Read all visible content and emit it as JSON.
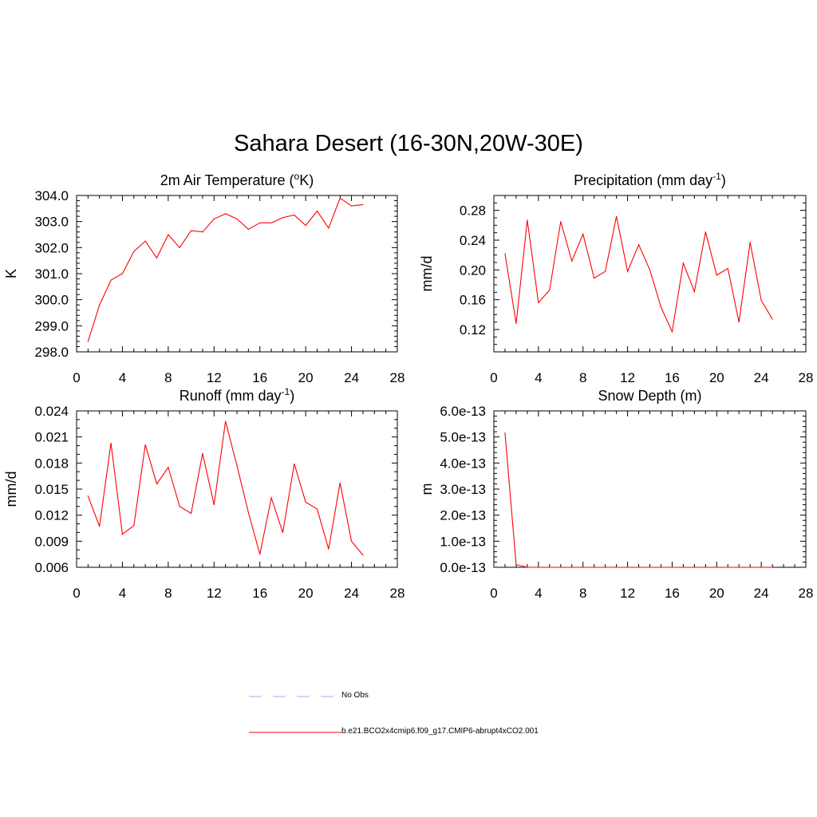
{
  "main_title": "Sahara Desert (16-30N,20W-30E)",
  "colors": {
    "model": "#ff0000",
    "obs": "#aaaaff",
    "axis": "#000000"
  },
  "legend": [
    {
      "label": "No Obs",
      "style": "dashed",
      "color": "#aaaaff"
    },
    {
      "label": "b.e21.BCO2x4cmip6.f09_g17.CMIP6-abrupt4xCO2.001",
      "style": "solid",
      "color": "#ff0000"
    }
  ],
  "chart_data": [
    {
      "type": "line",
      "title": "2m Air Temperature (oK)",
      "title_parts": {
        "pre": "2m Air Temperature (",
        "sup": "o",
        "post": "K)"
      },
      "xlabel": "",
      "ylabel": "K",
      "xlim": [
        0,
        28
      ],
      "ylim": [
        298.0,
        304.0
      ],
      "xticks": [
        0,
        4,
        8,
        12,
        16,
        20,
        24,
        28
      ],
      "xtick_labels": [
        "0",
        "4",
        "8",
        "12",
        "16",
        "20",
        "24",
        "28"
      ],
      "yticks": [
        298.0,
        299.0,
        300.0,
        301.0,
        302.0,
        303.0,
        304.0
      ],
      "ytick_labels": [
        "298.0",
        "299.0",
        "300.0",
        "301.0",
        "302.0",
        "303.0",
        "304.0"
      ],
      "y_minor_per_major": 5,
      "series": [
        {
          "name": "b.e21.BCO2x4cmip6.f09_g17.CMIP6-abrupt4xCO2.001",
          "x": [
            1,
            2,
            3,
            4,
            5,
            6,
            7,
            8,
            9,
            10,
            11,
            12,
            13,
            14,
            15,
            16,
            17,
            18,
            19,
            20,
            21,
            22,
            23,
            24,
            25
          ],
          "values": [
            298.4,
            299.8,
            300.75,
            301.0,
            301.85,
            302.25,
            301.6,
            302.5,
            302.0,
            302.65,
            302.6,
            303.1,
            303.3,
            303.1,
            302.7,
            302.95,
            302.95,
            303.15,
            303.25,
            302.85,
            303.4,
            302.75,
            303.9,
            303.6,
            303.65
          ]
        }
      ]
    },
    {
      "type": "line",
      "title": "Precipitation (mm day-1)",
      "title_parts": {
        "pre": "Precipitation (mm day",
        "sup": "-1",
        "post": ")"
      },
      "xlabel": "",
      "ylabel": "mm/d",
      "xlim": [
        0,
        28
      ],
      "ylim": [
        0.09,
        0.3
      ],
      "xticks": [
        0,
        4,
        8,
        12,
        16,
        20,
        24,
        28
      ],
      "xtick_labels": [
        "0",
        "4",
        "8",
        "12",
        "16",
        "20",
        "24",
        "28"
      ],
      "yticks": [
        0.12,
        0.16,
        0.2,
        0.24,
        0.28
      ],
      "ytick_labels": [
        "0.12",
        "0.16",
        "0.20",
        "0.24",
        "0.28"
      ],
      "y_minor_per_major": 4,
      "series": [
        {
          "name": "b.e21.BCO2x4cmip6.f09_g17.CMIP6-abrupt4xCO2.001",
          "x": [
            1,
            2,
            3,
            4,
            5,
            6,
            7,
            8,
            9,
            10,
            11,
            12,
            13,
            14,
            15,
            16,
            17,
            18,
            19,
            20,
            21,
            22,
            23,
            24,
            25
          ],
          "values": [
            0.222,
            0.128,
            0.267,
            0.156,
            0.173,
            0.265,
            0.212,
            0.248,
            0.189,
            0.198,
            0.272,
            0.198,
            0.234,
            0.2,
            0.15,
            0.117,
            0.209,
            0.171,
            0.251,
            0.193,
            0.202,
            0.13,
            0.237,
            0.159,
            0.134
          ]
        }
      ]
    },
    {
      "type": "line",
      "title": "Runoff (mm day-1)",
      "title_parts": {
        "pre": "Runoff (mm day",
        "sup": "-1",
        "post": ")"
      },
      "xlabel": "",
      "ylabel": "mm/d",
      "xlim": [
        0,
        28
      ],
      "ylim": [
        0.006,
        0.024
      ],
      "xticks": [
        0,
        4,
        8,
        12,
        16,
        20,
        24,
        28
      ],
      "xtick_labels": [
        "0",
        "4",
        "8",
        "12",
        "16",
        "20",
        "24",
        "28"
      ],
      "yticks": [
        0.006,
        0.009,
        0.012,
        0.015,
        0.018,
        0.021,
        0.024
      ],
      "ytick_labels": [
        "0.006",
        "0.009",
        "0.012",
        "0.015",
        "0.018",
        "0.021",
        "0.024"
      ],
      "y_minor_per_major": 3,
      "series": [
        {
          "name": "b.e21.BCO2x4cmip6.f09_g17.CMIP6-abrupt4xCO2.001",
          "x": [
            1,
            2,
            3,
            4,
            5,
            6,
            7,
            8,
            9,
            10,
            11,
            12,
            13,
            14,
            15,
            16,
            17,
            18,
            19,
            20,
            21,
            22,
            23,
            24,
            25
          ],
          "values": [
            0.0142,
            0.0107,
            0.0203,
            0.0098,
            0.0108,
            0.0201,
            0.0156,
            0.0175,
            0.013,
            0.0122,
            0.0191,
            0.0132,
            0.0228,
            0.0177,
            0.0123,
            0.0075,
            0.014,
            0.01,
            0.0179,
            0.0135,
            0.0127,
            0.0081,
            0.0157,
            0.009,
            0.0074
          ]
        }
      ]
    },
    {
      "type": "line",
      "title": "Snow Depth (m)",
      "title_parts": {
        "pre": "Snow Depth (m)",
        "sup": "",
        "post": ""
      },
      "xlabel": "",
      "ylabel": "m",
      "xlim": [
        0,
        28
      ],
      "ylim": [
        0,
        6e-13
      ],
      "xticks": [
        0,
        4,
        8,
        12,
        16,
        20,
        24,
        28
      ],
      "xtick_labels": [
        "0",
        "4",
        "8",
        "12",
        "16",
        "20",
        "24",
        "28"
      ],
      "yticks": [
        0,
        1e-13,
        2e-13,
        3e-13,
        4e-13,
        5e-13,
        6e-13
      ],
      "ytick_labels": [
        "0.0e-13",
        "1.0e-13",
        "2.0e-13",
        "3.0e-13",
        "4.0e-13",
        "5.0e-13",
        "6.0e-13"
      ],
      "y_minor_per_major": 5,
      "series": [
        {
          "name": "b.e21.BCO2x4cmip6.f09_g17.CMIP6-abrupt4xCO2.001",
          "x": [
            1,
            2,
            3,
            4,
            5,
            6,
            7,
            8,
            9,
            10,
            11,
            12,
            13,
            14,
            15,
            16,
            17,
            18,
            19,
            20,
            21,
            22,
            23,
            24,
            25
          ],
          "values": [
            5.15e-13,
            1e-14,
            0,
            0,
            0,
            0,
            0,
            0,
            0,
            0,
            0,
            0,
            0,
            0,
            0,
            0,
            0,
            0,
            0,
            0,
            0,
            0,
            0,
            0,
            0
          ]
        }
      ]
    }
  ]
}
